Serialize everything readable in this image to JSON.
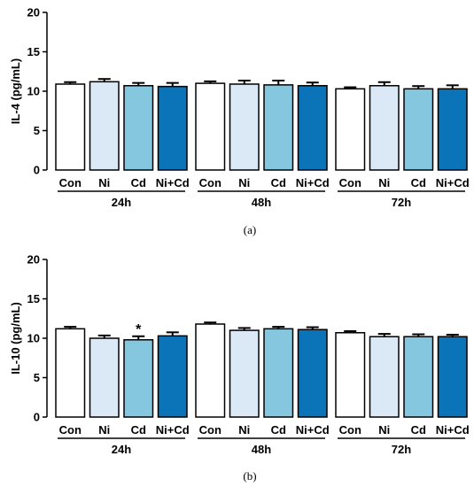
{
  "colors": {
    "Con": "#ffffff",
    "Ni": "#dbe9f6",
    "Cd": "#86c7e0",
    "Ni+Cd": "#0b74b8",
    "stroke": "#000000"
  },
  "chart_data": [
    {
      "type": "bar",
      "panel_label": "(a)",
      "ylabel": "IL-4 (pg/mL)",
      "ylim": [
        0,
        20
      ],
      "yticks": [
        "0",
        "5",
        "10",
        "15",
        "20"
      ],
      "categories": [
        "Con",
        "Ni",
        "Cd",
        "Ni+Cd",
        "Con",
        "Ni",
        "Cd",
        "Ni+Cd",
        "Con",
        "Ni",
        "Cd",
        "Ni+Cd"
      ],
      "groups": [
        "24h",
        "48h",
        "72h"
      ],
      "values": [
        10.9,
        11.2,
        10.7,
        10.6,
        11.0,
        10.9,
        10.8,
        10.7,
        10.3,
        10.7,
        10.3,
        10.3
      ],
      "errors": [
        0.25,
        0.35,
        0.35,
        0.45,
        0.25,
        0.45,
        0.55,
        0.4,
        0.2,
        0.45,
        0.35,
        0.45
      ],
      "annotations": []
    },
    {
      "type": "bar",
      "panel_label": "(b)",
      "ylabel": "IL-10 (pg/mL)",
      "ylim": [
        0,
        20
      ],
      "yticks": [
        "0",
        "5",
        "10",
        "15",
        "20"
      ],
      "categories": [
        "Con",
        "Ni",
        "Cd",
        "Ni+Cd",
        "Con",
        "Ni",
        "Cd",
        "Ni+Cd",
        "Con",
        "Ni",
        "Cd",
        "Ni+Cd"
      ],
      "groups": [
        "24h",
        "48h",
        "72h"
      ],
      "values": [
        11.2,
        10.0,
        9.8,
        10.3,
        11.8,
        11.0,
        11.2,
        11.1,
        10.7,
        10.2,
        10.2,
        10.2
      ],
      "errors": [
        0.25,
        0.35,
        0.45,
        0.45,
        0.2,
        0.3,
        0.25,
        0.3,
        0.2,
        0.35,
        0.3,
        0.25
      ],
      "annotations": [
        {
          "index": 2,
          "text": "*"
        }
      ]
    }
  ]
}
